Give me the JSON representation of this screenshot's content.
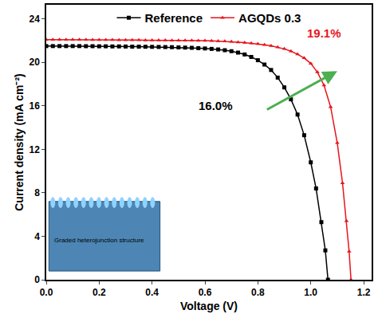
{
  "chart_data": {
    "type": "line",
    "xlabel": "Voltage (V)",
    "ylabel": "Current density (mA cm⁻²)",
    "xlim": [
      0,
      1.23
    ],
    "ylim": [
      0,
      25.3
    ],
    "xticks": [
      {
        "value": 0,
        "label": "0.0"
      },
      0.2,
      0.4,
      0.6,
      0.8,
      {
        "value": 1,
        "label": "1.0"
      },
      1.2
    ],
    "yticks": [
      0,
      4,
      8,
      12,
      16,
      20,
      24
    ],
    "grid": false,
    "legend": "top",
    "series": [
      {
        "name": "Reference",
        "color": "#000000",
        "marker": "square",
        "x": [
          0,
          0.025,
          0.05,
          0.075,
          0.1,
          0.125,
          0.15,
          0.175,
          0.2,
          0.225,
          0.25,
          0.275,
          0.3,
          0.325,
          0.35,
          0.375,
          0.4,
          0.425,
          0.45,
          0.475,
          0.5,
          0.525,
          0.55,
          0.575,
          0.6,
          0.625,
          0.65,
          0.675,
          0.7,
          0.725,
          0.75,
          0.775,
          0.8,
          0.825,
          0.85,
          0.875,
          0.9,
          0.925,
          0.95,
          0.975,
          1.0,
          1.02,
          1.04,
          1.055,
          1.065
        ],
        "values": [
          21.5,
          21.5,
          21.5,
          21.5,
          21.5,
          21.5,
          21.49,
          21.49,
          21.48,
          21.48,
          21.47,
          21.47,
          21.46,
          21.45,
          21.45,
          21.44,
          21.43,
          21.42,
          21.41,
          21.4,
          21.38,
          21.36,
          21.34,
          21.31,
          21.28,
          21.24,
          21.19,
          21.12,
          21.03,
          20.9,
          20.73,
          20.5,
          20.2,
          19.8,
          19.3,
          18.6,
          17.7,
          16.6,
          15.2,
          13.3,
          10.8,
          8.4,
          5.3,
          2.7,
          0
        ]
      },
      {
        "name": "AGQDs 0.3",
        "color": "#e8141c",
        "marker": "triangle-up",
        "x": [
          0,
          0.025,
          0.05,
          0.075,
          0.1,
          0.125,
          0.15,
          0.175,
          0.2,
          0.225,
          0.25,
          0.275,
          0.3,
          0.325,
          0.35,
          0.375,
          0.4,
          0.425,
          0.45,
          0.475,
          0.5,
          0.525,
          0.55,
          0.575,
          0.6,
          0.625,
          0.65,
          0.675,
          0.7,
          0.725,
          0.75,
          0.775,
          0.8,
          0.825,
          0.85,
          0.875,
          0.9,
          0.925,
          0.95,
          0.975,
          1.0,
          1.025,
          1.05,
          1.075,
          1.1,
          1.12,
          1.135,
          1.145,
          1.152
        ],
        "values": [
          22.1,
          22.1,
          22.1,
          22.1,
          22.1,
          22.09,
          22.09,
          22.08,
          22.08,
          22.07,
          22.07,
          22.06,
          22.06,
          22.05,
          22.05,
          22.04,
          22.04,
          22.03,
          22.03,
          22.02,
          22.02,
          22.01,
          22.01,
          22.0,
          22.0,
          21.98,
          21.96,
          21.94,
          21.9,
          21.86,
          21.82,
          21.76,
          21.7,
          21.62,
          21.52,
          21.4,
          21.24,
          21.03,
          20.75,
          20.4,
          19.9,
          19.1,
          17.9,
          15.9,
          12.6,
          8.9,
          5.4,
          2.6,
          0
        ]
      }
    ],
    "annotations": [
      {
        "text": "16.0%",
        "x": 0.64,
        "y": 16.0,
        "color": "#000000"
      },
      {
        "text": "19.1%",
        "x": 1.05,
        "y": 22.7,
        "color": "#e8141c"
      },
      {
        "text": "Graded heterojunction structure",
        "x": 0.2,
        "y": 3.6,
        "color": "#000000"
      }
    ]
  }
}
